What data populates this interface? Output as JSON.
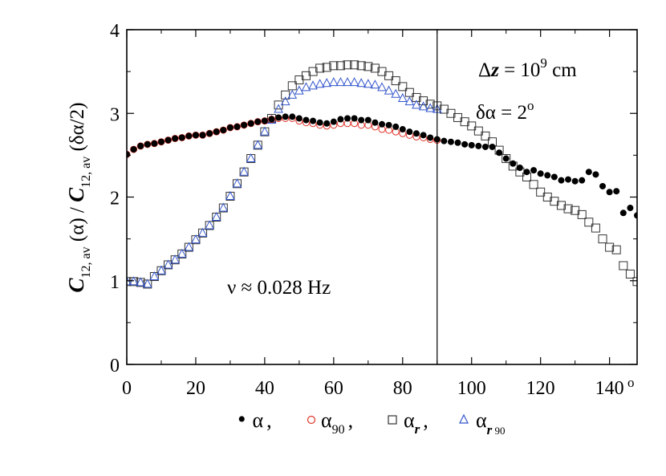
{
  "chart_data": {
    "type": "scatter",
    "xlim": [
      0,
      148
    ],
    "ylim": [
      0,
      4
    ],
    "x_ticks": [
      0,
      20,
      40,
      60,
      80,
      100,
      120,
      140
    ],
    "x_tick_labels": [
      "0",
      "20",
      "40",
      "60",
      "80",
      "100",
      "120",
      "140"
    ],
    "x_unit_mark": "o",
    "y_ticks": [
      0,
      1,
      2,
      3,
      4
    ],
    "y_tick_labels": [
      "0",
      "1",
      "2",
      "3",
      "4"
    ],
    "ylabel": {
      "c1": "C",
      "s1": "12, av",
      "m1": " (α) / ",
      "c2": "C",
      "s2": "12, av",
      "m2": " (δα/2)"
    },
    "vline_x": 90,
    "annotations": {
      "dz_lead": "Δ",
      "dz_var": "z",
      "dz_mid": " = 10",
      "dz_exp": "9",
      "dz_unit": " cm",
      "da_text": "δα = 2",
      "da_exp": "o",
      "nu_text": "ν ≈ 0.028 Hz"
    },
    "legend": {
      "bullet_mark": "•",
      "alpha_label": "α",
      "comma_1": ",",
      "alpha90_label": "α",
      "alpha90_sub": "90",
      "comma_2": ",",
      "alphar_label": "α",
      "alphar_sub": "r",
      "comma_3": ",",
      "alphar90_label": "α",
      "alphar90_sub_r": "r",
      "alphar90_sub_90": " 90"
    },
    "grid": false,
    "series": [
      {
        "marker": "filled-circle",
        "color": "#000000",
        "x": [
          0,
          2,
          4,
          6,
          8,
          10,
          12,
          14,
          16,
          18,
          20,
          22,
          24,
          26,
          28,
          30,
          32,
          34,
          36,
          38,
          40,
          42,
          44,
          46,
          48,
          50,
          52,
          54,
          56,
          58,
          60,
          62,
          64,
          66,
          68,
          70,
          72,
          74,
          76,
          78,
          80,
          82,
          84,
          86,
          88,
          90,
          92,
          94,
          96,
          98,
          100,
          102,
          104,
          106,
          108,
          110,
          112,
          114,
          116,
          118,
          120,
          122,
          124,
          126,
          128,
          130,
          132,
          134,
          136,
          138,
          140,
          142,
          144,
          146,
          148
        ],
        "y": [
          2.51,
          2.57,
          2.61,
          2.63,
          2.64,
          2.66,
          2.68,
          2.7,
          2.71,
          2.73,
          2.74,
          2.74,
          2.76,
          2.78,
          2.8,
          2.83,
          2.84,
          2.86,
          2.88,
          2.9,
          2.91,
          2.93,
          2.95,
          2.96,
          2.96,
          2.94,
          2.92,
          2.91,
          2.89,
          2.88,
          2.9,
          2.93,
          2.94,
          2.94,
          2.92,
          2.92,
          2.89,
          2.87,
          2.86,
          2.84,
          2.81,
          2.78,
          2.76,
          2.74,
          2.71,
          2.69,
          2.67,
          2.66,
          2.65,
          2.63,
          2.62,
          2.61,
          2.6,
          2.6,
          2.53,
          2.46,
          2.4,
          2.35,
          2.3,
          2.32,
          2.28,
          2.26,
          2.24,
          2.2,
          2.21,
          2.19,
          2.2,
          2.3,
          2.27,
          2.13,
          2.06,
          2.07,
          1.81,
          1.87,
          1.78
        ]
      },
      {
        "marker": "open-circle",
        "color": "#e0342c",
        "x": [
          0,
          2,
          4,
          6,
          8,
          10,
          12,
          14,
          16,
          18,
          20,
          22,
          24,
          26,
          28,
          30,
          32,
          34,
          36,
          38,
          40,
          42,
          44,
          46,
          48,
          50,
          52,
          54,
          56,
          58,
          60,
          62,
          64,
          66,
          68,
          70,
          72,
          74,
          76,
          78,
          80,
          82,
          84,
          86,
          88,
          90
        ],
        "y": [
          2.51,
          2.57,
          2.61,
          2.63,
          2.64,
          2.66,
          2.68,
          2.7,
          2.71,
          2.73,
          2.74,
          2.74,
          2.76,
          2.78,
          2.8,
          2.83,
          2.84,
          2.86,
          2.88,
          2.9,
          2.91,
          2.93,
          2.94,
          2.94,
          2.94,
          2.91,
          2.89,
          2.88,
          2.86,
          2.85,
          2.86,
          2.88,
          2.88,
          2.88,
          2.86,
          2.86,
          2.84,
          2.81,
          2.8,
          2.78,
          2.76,
          2.74,
          2.72,
          2.71,
          2.69,
          2.68
        ]
      },
      {
        "marker": "open-square",
        "color": "#333333",
        "x": [
          0,
          2,
          4,
          6,
          8,
          10,
          12,
          14,
          16,
          18,
          20,
          22,
          24,
          26,
          28,
          30,
          32,
          34,
          36,
          38,
          40,
          42,
          44,
          46,
          48,
          50,
          52,
          54,
          56,
          58,
          60,
          62,
          64,
          66,
          68,
          70,
          72,
          74,
          76,
          78,
          80,
          82,
          84,
          86,
          88,
          90,
          92,
          94,
          96,
          98,
          100,
          102,
          104,
          106,
          108,
          110,
          112,
          114,
          116,
          118,
          120,
          122,
          124,
          126,
          128,
          130,
          132,
          134,
          136,
          138,
          140,
          142,
          144,
          146,
          148
        ],
        "y": [
          0.99,
          0.99,
          0.98,
          0.96,
          1.05,
          1.12,
          1.19,
          1.25,
          1.32,
          1.4,
          1.49,
          1.57,
          1.66,
          1.76,
          1.87,
          2.01,
          2.16,
          2.3,
          2.46,
          2.62,
          2.78,
          2.94,
          3.1,
          3.22,
          3.33,
          3.4,
          3.45,
          3.5,
          3.54,
          3.55,
          3.57,
          3.57,
          3.58,
          3.58,
          3.57,
          3.56,
          3.54,
          3.5,
          3.45,
          3.39,
          3.32,
          3.25,
          3.19,
          3.15,
          3.11,
          3.09,
          3.05,
          3.0,
          2.95,
          2.9,
          2.85,
          2.79,
          2.73,
          2.66,
          2.56,
          2.46,
          2.37,
          2.3,
          2.24,
          2.15,
          2.06,
          2.0,
          1.95,
          1.9,
          1.86,
          1.84,
          1.79,
          1.7,
          1.63,
          1.5,
          1.4,
          1.37,
          1.18,
          1.08,
          0.99
        ]
      },
      {
        "marker": "open-triangle",
        "color": "#3355cc",
        "x": [
          0,
          2,
          4,
          6,
          8,
          10,
          12,
          14,
          16,
          18,
          20,
          22,
          24,
          26,
          28,
          30,
          32,
          34,
          36,
          38,
          40,
          42,
          44,
          46,
          48,
          50,
          52,
          54,
          56,
          58,
          60,
          62,
          64,
          66,
          68,
          70,
          72,
          74,
          76,
          78,
          80,
          82,
          84,
          86,
          88,
          90
        ],
        "y": [
          0.99,
          0.99,
          0.98,
          0.96,
          1.05,
          1.12,
          1.19,
          1.25,
          1.32,
          1.4,
          1.49,
          1.57,
          1.66,
          1.76,
          1.87,
          2.01,
          2.16,
          2.3,
          2.46,
          2.62,
          2.78,
          2.92,
          3.05,
          3.14,
          3.22,
          3.27,
          3.31,
          3.33,
          3.35,
          3.36,
          3.37,
          3.37,
          3.37,
          3.37,
          3.36,
          3.35,
          3.34,
          3.31,
          3.27,
          3.23,
          3.18,
          3.14,
          3.1,
          3.08,
          3.06,
          3.05
        ]
      }
    ]
  }
}
